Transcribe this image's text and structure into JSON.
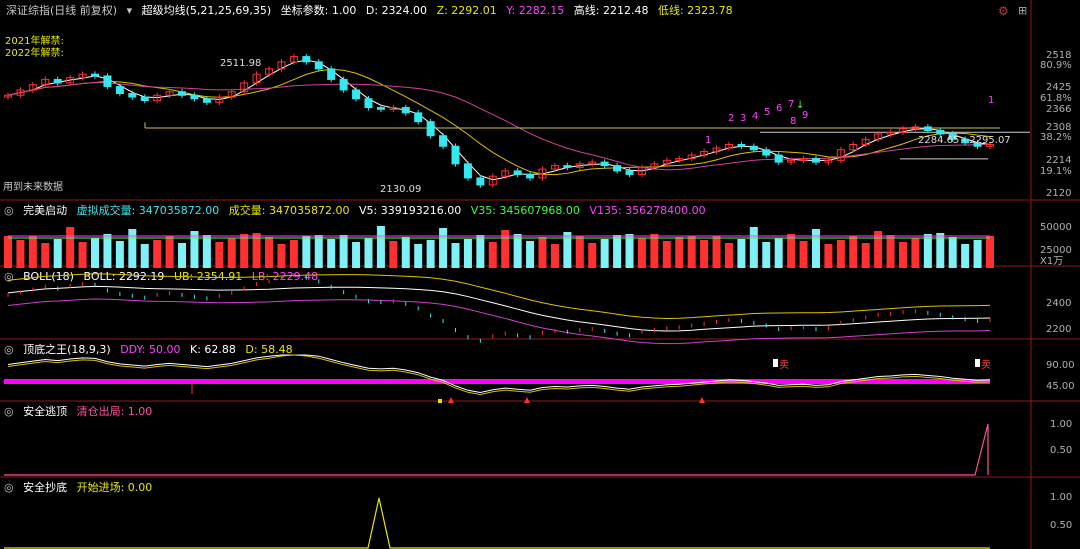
{
  "header": {
    "index_name": "深证综指(日线 前复权)",
    "indicator": "超级均线(5,21,25,69,35)",
    "param": "坐标参数: 1.00",
    "d": "D: 2324.00",
    "z": "Z: 2292.01",
    "y": "Y: 2282.15",
    "high": "高线: 2212.48",
    "low": "低线: 2323.78"
  },
  "main": {
    "note1": "2021年解禁:",
    "note2": "2022年解禁:",
    "future_note": "用到未来数据",
    "hi_label": "2511.98",
    "lo_label": "2130.09",
    "range_label": "2284.65 - 2295.07",
    "right_ticks": [
      "2518",
      "80.9%",
      "2425",
      "61.8%",
      "2366",
      "2308",
      "38.2%",
      "2214",
      "19.1%",
      "2120"
    ],
    "signal_digits": [
      "1",
      "2",
      "3",
      "4",
      "5",
      "6",
      "7",
      "8",
      "9",
      "1"
    ]
  },
  "vol": {
    "title": "完美启动",
    "virt": "虚拟成交量: 347035872.00",
    "volume": "成交量: 347035872.00",
    "v5": "V5: 339193216.00",
    "v35": "V35: 345607968.00",
    "v135": "V135: 356278400.00",
    "ticks": [
      "50000",
      "25000"
    ],
    "unit": "X1万"
  },
  "boll": {
    "title": "BOLL(18)",
    "boll": "BOLL: 2292.19",
    "ub": "UB: 2354.91",
    "lb": "LB: 2229.48",
    "ticks": [
      "2400",
      "2200"
    ]
  },
  "dd": {
    "title": "顶底之王(18,9,3)",
    "ddy": "DDY: 50.00",
    "k": "K: 62.88",
    "d": "D: 58.48",
    "ticks": [
      "90.00",
      "45.00"
    ],
    "sell": "卖"
  },
  "escape": {
    "title": "安全逃顶",
    "label": "清仓出局: 1.00",
    "ticks": [
      "1.00",
      "0.50"
    ]
  },
  "bottom": {
    "title": "安全抄底",
    "label": "开始进场: 0.00",
    "ticks": [
      "1.00",
      "0.50"
    ]
  },
  "chart_data": {
    "type": "candlestick",
    "x_count": 80,
    "close": [
      2395,
      2410,
      2425,
      2440,
      2430,
      2445,
      2455,
      2450,
      2420,
      2400,
      2390,
      2380,
      2395,
      2405,
      2395,
      2385,
      2375,
      2390,
      2405,
      2430,
      2455,
      2470,
      2490,
      2505,
      2490,
      2470,
      2440,
      2410,
      2385,
      2360,
      2355,
      2360,
      2345,
      2320,
      2280,
      2250,
      2200,
      2160,
      2140,
      2165,
      2180,
      2170,
      2160,
      2185,
      2195,
      2190,
      2200,
      2205,
      2195,
      2180,
      2170,
      2190,
      2200,
      2210,
      2215,
      2225,
      2235,
      2245,
      2255,
      2250,
      2240,
      2225,
      2205,
      2210,
      2215,
      2205,
      2210,
      2240,
      2255,
      2270,
      2285,
      2290,
      2300,
      2305,
      2295,
      2285,
      2270,
      2260,
      2250,
      2255
    ]
  }
}
